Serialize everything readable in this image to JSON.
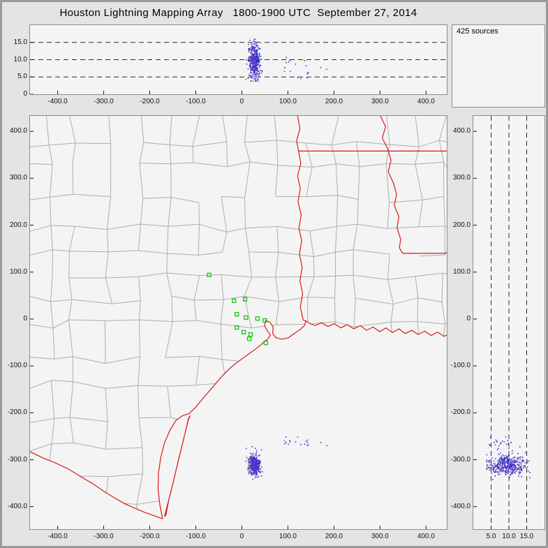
{
  "title": "Houston Lightning Mapping Array   1800-1900 UTC  September 27, 2014",
  "sources_count_label": "425 sources",
  "colors": {
    "page_bg": "#e4e4e4",
    "panel_bg": "#f4f4f4",
    "panel_border": "#8c8c8c",
    "sea": "#f4f4f4",
    "dashed_line": "#2a2a2a",
    "tick_color": "#111111",
    "county_line": "#aeaeae",
    "state_border": "#d81818",
    "station_marker": "#12c412",
    "source_palette": [
      "#4433cc",
      "#5b2fd0",
      "#3347cf",
      "#7a3bd6",
      "#2a2ab0"
    ]
  },
  "chart_data": [
    {
      "id": "alt-ew",
      "type": "scatter",
      "note": "altitude (km) vs east-west position (km) of lightning VHF sources; dense column near x=28 km spanning 4-16 km altitude",
      "xlim": [
        -460,
        445
      ],
      "ylim": [
        0,
        20
      ],
      "xticks": [
        [
          -400,
          "-400.0"
        ],
        [
          -300,
          "-300.0"
        ],
        [
          -200,
          "-200.0"
        ],
        [
          -100,
          "-100.0"
        ],
        [
          0,
          "0"
        ],
        [
          100,
          "100.0"
        ],
        [
          200,
          "200.0"
        ],
        [
          300,
          "300.0"
        ],
        [
          400,
          "400.0"
        ]
      ],
      "yticks": [
        [
          0,
          "0"
        ],
        [
          5,
          "5.0"
        ],
        [
          10,
          "10.0"
        ],
        [
          15,
          "15.0"
        ]
      ],
      "dashed_hlines": [
        5,
        10,
        15
      ],
      "grid": "dashed horizontal reference lines",
      "legend": "none"
    },
    {
      "id": "plan-view",
      "type": "scatter",
      "note": "plan view map (km east-west vs km north-south) with Texas/Louisiana county outlines, red state borders and Gulf coastline, green LMA station squares; dense source cluster near (28,-310) offshore and sparse sources near (95..190,-260)",
      "xlim": [
        -460,
        445
      ],
      "ylim": [
        -448,
        433
      ],
      "xticks": [
        [
          -400,
          "-400.0"
        ],
        [
          -300,
          "-300.0"
        ],
        [
          -200,
          "-200.0"
        ],
        [
          -100,
          "-100.0"
        ],
        [
          0,
          "0"
        ],
        [
          100,
          "100.0"
        ],
        [
          200,
          "200.0"
        ],
        [
          300,
          "300.0"
        ],
        [
          400,
          "400.0"
        ]
      ],
      "yticks": [
        [
          400,
          "400.0"
        ],
        [
          300,
          "300.0"
        ],
        [
          200,
          "200.0"
        ],
        [
          100,
          "100.0"
        ],
        [
          0,
          "0"
        ],
        [
          -100,
          "-100.0"
        ],
        [
          -200,
          "-200.0"
        ],
        [
          -300,
          "-300.0"
        ],
        [
          -400,
          "-400.0"
        ]
      ],
      "grid": "off",
      "legend": "none"
    },
    {
      "id": "alt-ns",
      "type": "scatter",
      "note": "altitude (km) vs north-south position (km); dense horizontal band near y=-310 spanning 4-16 km altitude",
      "xlim": [
        0,
        20
      ],
      "ylim": [
        -448,
        433
      ],
      "xticks": [
        [
          5,
          "5.0"
        ],
        [
          10,
          "10.0"
        ],
        [
          15,
          "15.0"
        ]
      ],
      "yticks": [
        [
          400,
          "400.0"
        ],
        [
          300,
          "300.0"
        ],
        [
          200,
          "200.0"
        ],
        [
          100,
          "100.0"
        ],
        [
          0,
          "0"
        ],
        [
          -100,
          "-100.0"
        ],
        [
          -200,
          "-200.0"
        ],
        [
          -300,
          "-300.0"
        ],
        [
          -400,
          "-400.0"
        ]
      ],
      "dashed_vlines": [
        5,
        10,
        15
      ],
      "grid": "dashed vertical reference lines",
      "legend": "none"
    }
  ],
  "lma_sources": {
    "total": 425,
    "seed": 1337,
    "clusters": [
      {
        "n": 407,
        "x_mean": 28,
        "x_sd": 6,
        "y_mean": -311,
        "y_sd": 11,
        "alt_mean": 9.3,
        "alt_sd": 2.6,
        "alt_min": 3.8,
        "alt_max": 15.9
      },
      {
        "n": 18,
        "x_min": 92,
        "x_max": 190,
        "y_mean": -261,
        "y_sd": 6,
        "alt_mean": 7.5,
        "alt_sd": 1.6,
        "alt_min": 4.5,
        "alt_max": 11
      }
    ]
  },
  "stations": [
    [
      -71,
      94
    ],
    [
      -17,
      39
    ],
    [
      7,
      42
    ],
    [
      -11,
      10
    ],
    [
      9,
      3
    ],
    [
      34,
      1
    ],
    [
      -11,
      -18
    ],
    [
      4,
      -28
    ],
    [
      19,
      -33
    ],
    [
      50,
      -3
    ],
    [
      16,
      -42
    ],
    [
      52,
      -51
    ]
  ],
  "map_features": {
    "county_mesh_seed": 7,
    "county_cell_km": [
      44,
      80
    ],
    "coastline": [
      [
        -172,
        -426
      ],
      [
        -178,
        -396
      ],
      [
        -182,
        -362
      ],
      [
        -181,
        -328
      ],
      [
        -176,
        -295
      ],
      [
        -168,
        -264
      ],
      [
        -156,
        -237
      ],
      [
        -143,
        -216
      ],
      [
        -129,
        -206
      ],
      [
        -115,
        -202
      ],
      [
        -101,
        -189
      ],
      [
        -86,
        -171
      ],
      [
        -71,
        -154
      ],
      [
        -57,
        -138
      ],
      [
        -43,
        -122
      ],
      [
        -29,
        -108
      ],
      [
        -15,
        -96
      ],
      [
        -1,
        -86
      ],
      [
        13,
        -76
      ],
      [
        27,
        -66
      ],
      [
        39,
        -57
      ],
      [
        49,
        -48
      ],
      [
        57,
        -42
      ],
      [
        62,
        -34
      ],
      [
        56,
        -26
      ],
      [
        49,
        -14
      ],
      [
        52,
        -3
      ],
      [
        61,
        -7
      ],
      [
        68,
        -17
      ],
      [
        67,
        -31
      ],
      [
        74,
        -40
      ],
      [
        87,
        -43
      ],
      [
        101,
        -40
      ],
      [
        114,
        -31
      ],
      [
        127,
        -22
      ],
      [
        136,
        -14
      ],
      [
        139,
        -4
      ],
      [
        146,
        -9
      ],
      [
        159,
        -14
      ],
      [
        173,
        -8
      ],
      [
        187,
        -16
      ],
      [
        201,
        -10
      ],
      [
        215,
        -19
      ],
      [
        229,
        -12
      ],
      [
        243,
        -21
      ],
      [
        257,
        -14
      ],
      [
        271,
        -24
      ],
      [
        285,
        -17
      ],
      [
        299,
        -27
      ],
      [
        313,
        -19
      ],
      [
        327,
        -29
      ],
      [
        341,
        -21
      ],
      [
        355,
        -31
      ],
      [
        369,
        -24
      ],
      [
        383,
        -33
      ],
      [
        397,
        -26
      ],
      [
        411,
        -35
      ],
      [
        425,
        -28
      ],
      [
        439,
        -37
      ],
      [
        455,
        -30
      ]
    ],
    "barrier_island": [
      [
        -168,
        -421
      ],
      [
        -158,
        -383
      ],
      [
        -148,
        -344
      ],
      [
        -139,
        -306
      ],
      [
        -130,
        -270
      ],
      [
        -122,
        -238
      ],
      [
        -116,
        -212
      ],
      [
        -112,
        -206
      ],
      [
        -116,
        -214
      ],
      [
        -123,
        -242
      ],
      [
        -131,
        -274
      ],
      [
        -140,
        -310
      ],
      [
        -149,
        -348
      ],
      [
        -159,
        -387
      ],
      [
        -165,
        -418
      ],
      [
        -168,
        -421
      ]
    ],
    "rio_grande": [
      [
        -460,
        -283
      ],
      [
        -432,
        -296
      ],
      [
        -404,
        -307
      ],
      [
        -376,
        -320
      ],
      [
        -350,
        -336
      ],
      [
        -324,
        -351
      ],
      [
        -300,
        -367
      ],
      [
        -277,
        -381
      ],
      [
        -254,
        -394
      ],
      [
        -231,
        -404
      ],
      [
        -209,
        -413
      ],
      [
        -189,
        -420
      ],
      [
        -172,
        -426
      ]
    ],
    "state_borders": {
      "tx-la-sabine-border": [
        [
          121,
          433
        ],
        [
          126,
          406
        ],
        [
          119,
          380
        ],
        [
          123,
          358
        ],
        [
          128,
          332
        ],
        [
          121,
          305
        ],
        [
          127,
          278
        ],
        [
          122,
          250
        ],
        [
          129,
          222
        ],
        [
          124,
          194
        ],
        [
          130,
          166
        ],
        [
          125,
          138
        ],
        [
          131,
          110
        ],
        [
          126,
          82
        ],
        [
          132,
          54
        ],
        [
          127,
          26
        ],
        [
          133,
          -2
        ],
        [
          139,
          -4
        ]
      ],
      "ar-la-33n-border": [
        [
          123,
          358
        ],
        [
          455,
          358
        ]
      ],
      "mississippi-river-border": [
        [
          301,
          433
        ],
        [
          312,
          410
        ],
        [
          305,
          386
        ],
        [
          317,
          362
        ],
        [
          324,
          338
        ],
        [
          318,
          314
        ],
        [
          329,
          290
        ],
        [
          336,
          266
        ],
        [
          331,
          242
        ],
        [
          341,
          218
        ],
        [
          337,
          194
        ],
        [
          345,
          170
        ],
        [
          342,
          152
        ],
        [
          349,
          140
        ]
      ],
      "la-ms-31n-border": [
        [
          349,
          140
        ],
        [
          455,
          140
        ]
      ]
    }
  }
}
